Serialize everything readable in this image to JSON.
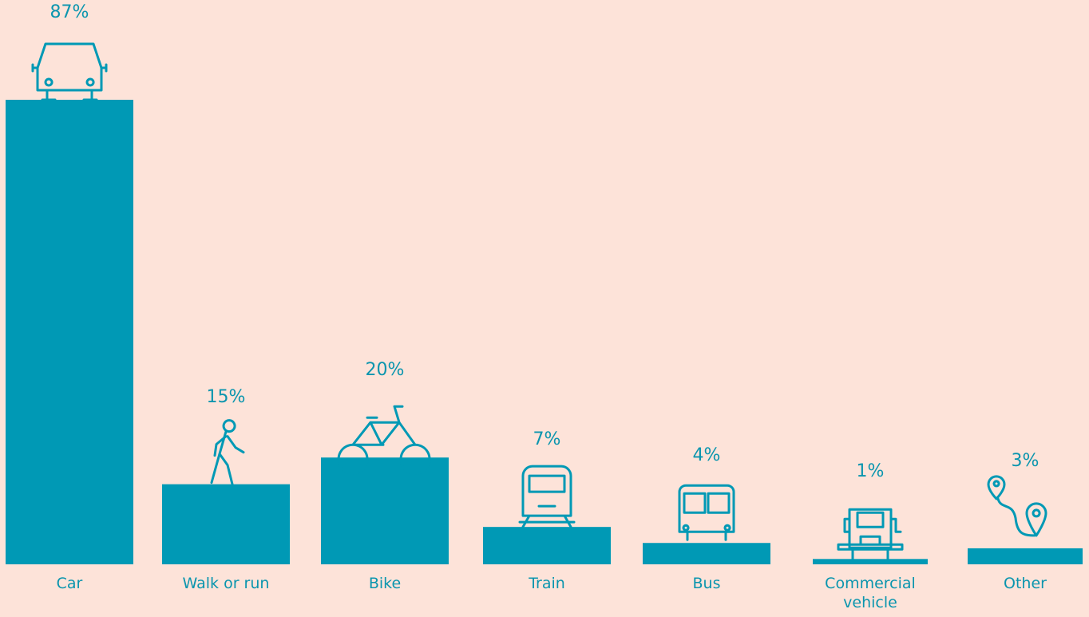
{
  "chart_data": {
    "type": "bar",
    "categories": [
      "Car",
      "Walk or run",
      "Bike",
      "Train",
      "Bus",
      "Commercial vehicle",
      "Other"
    ],
    "values": [
      87,
      15,
      20,
      7,
      4,
      1,
      3
    ],
    "value_labels": [
      "87%",
      "15%",
      "20%",
      "7%",
      "4%",
      "1%",
      "3%"
    ],
    "color": "#0099b5"
  }
}
